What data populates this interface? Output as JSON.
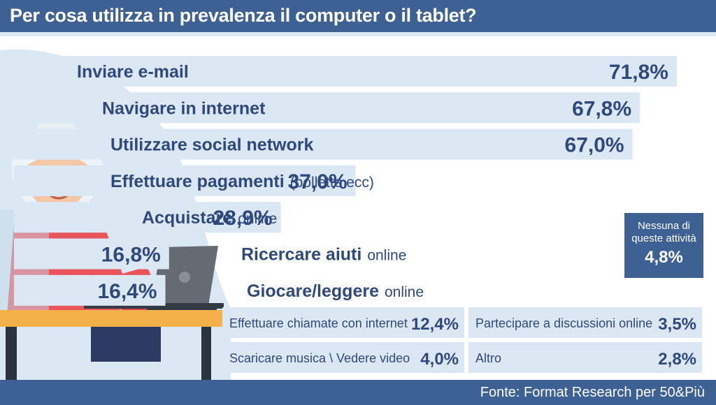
{
  "header": {
    "title": "Per cosa utilizza in prevalenza il computer o il tablet?"
  },
  "footer": {
    "source": "Fonte: Format Research per 50&Più"
  },
  "colors": {
    "header_bg": "#3d6193",
    "bar_fill": "#dbe8f4",
    "text": "#2e4a7c"
  },
  "illustration": {
    "icon": "elderly-woman-with-laptop-illustration"
  },
  "chart_data": {
    "type": "bar",
    "orientation": "horizontal",
    "unit": "%",
    "main_bars": [
      {
        "label": "Inviare e-mail",
        "suffix": "",
        "value": 71.8,
        "value_label": "71,8%"
      },
      {
        "label": "Navigare in internet",
        "suffix": "",
        "value": 67.8,
        "value_label": "67,8%"
      },
      {
        "label": "Utilizzare social network",
        "suffix": "",
        "value": 67.0,
        "value_label": "67,0%"
      },
      {
        "label": "Effettuare pagamenti",
        "suffix": "(bollette ecc)",
        "value": 37.0,
        "value_label": "37,0%"
      },
      {
        "label": "Acquistare",
        "suffix": "online",
        "value": 28.9,
        "value_label": "28,9%"
      },
      {
        "label": "Ricercare aiuti",
        "suffix": "online",
        "value": 16.8,
        "value_label": "16,8%"
      },
      {
        "label": "Giocare/leggere",
        "suffix": "online",
        "value": 16.4,
        "value_label": "16,4%"
      }
    ],
    "small_items": [
      {
        "label": "Effettuare chiamate con internet",
        "value": 12.4,
        "value_label": "12,4%"
      },
      {
        "label": "Partecipare a discussioni online",
        "value": 3.5,
        "value_label": "3,5%"
      },
      {
        "label": "Scaricare musica \\ Vedere video",
        "value": 4.0,
        "value_label": "4,0%"
      },
      {
        "label": "Altro",
        "value": 2.8,
        "value_label": "2,8%"
      }
    ],
    "none": {
      "label": "Nessuna di queste attività",
      "value": 4.8,
      "value_label": "4,8%"
    }
  }
}
